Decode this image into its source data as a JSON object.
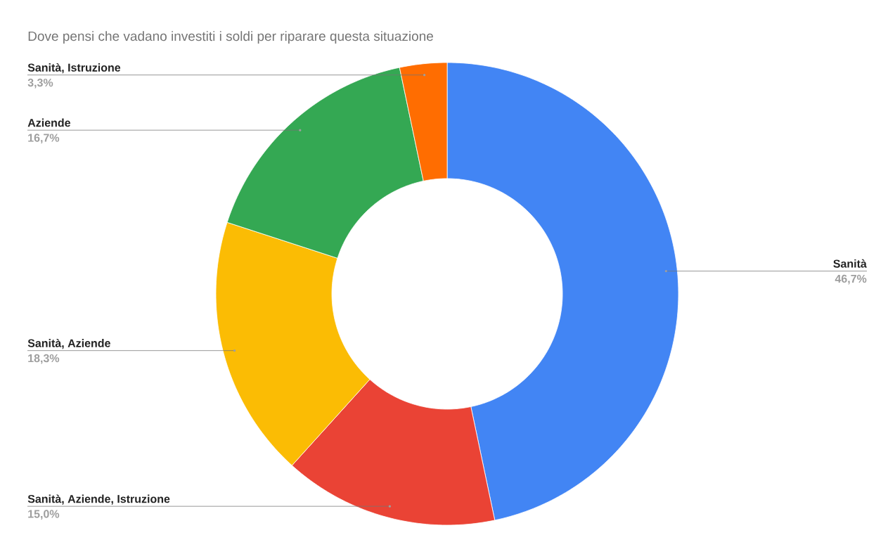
{
  "chart_data": {
    "type": "donut",
    "title": "Dove pensi che vadano investiti i soldi per riparare questa situazione",
    "categories": [
      "Sanità",
      "Sanità, Aziende, Istruzione",
      "Sanità, Aziende",
      "Aziende",
      "Sanità, Istruzione"
    ],
    "values": [
      46.7,
      15.0,
      18.3,
      16.7,
      3.3
    ],
    "colors": [
      "#4285f4",
      "#ea4335",
      "#fbbc04",
      "#34a853",
      "#ff6d01"
    ],
    "value_labels": [
      "46,7%",
      "15,0%",
      "18,3%",
      "16,7%",
      "3,3%"
    ]
  }
}
